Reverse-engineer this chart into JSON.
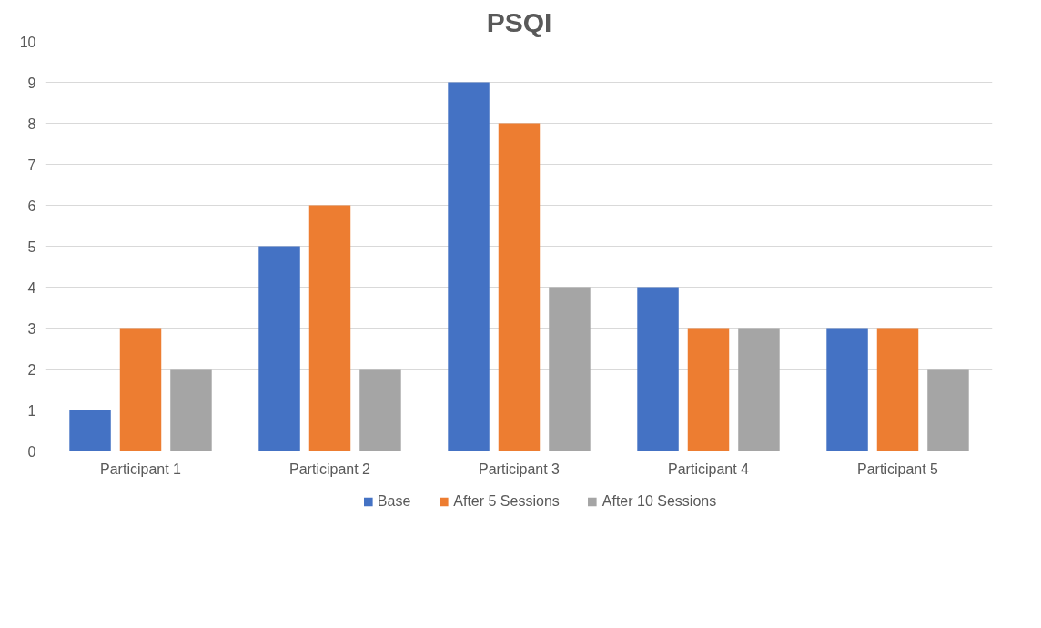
{
  "chart_data": {
    "type": "bar",
    "title": "PSQI",
    "categories": [
      "Participant 1",
      "Participant 2",
      "Participant 3",
      "Participant 4",
      "Participant 5"
    ],
    "series": [
      {
        "name": "Base",
        "color": "#4472c4",
        "values": [
          1,
          5,
          9,
          4,
          3
        ]
      },
      {
        "name": "After 5 Sessions",
        "color": "#ed7d31",
        "values": [
          3,
          6,
          8,
          3,
          3
        ]
      },
      {
        "name": "After 10 Sessions",
        "color": "#a5a5a5",
        "values": [
          2,
          2,
          4,
          3,
          2
        ]
      }
    ],
    "ylim": [
      0,
      10
    ],
    "yticks": [
      0,
      1,
      2,
      3,
      4,
      5,
      6,
      7,
      8,
      9,
      10
    ],
    "grid": "y",
    "legend": "bottom"
  }
}
